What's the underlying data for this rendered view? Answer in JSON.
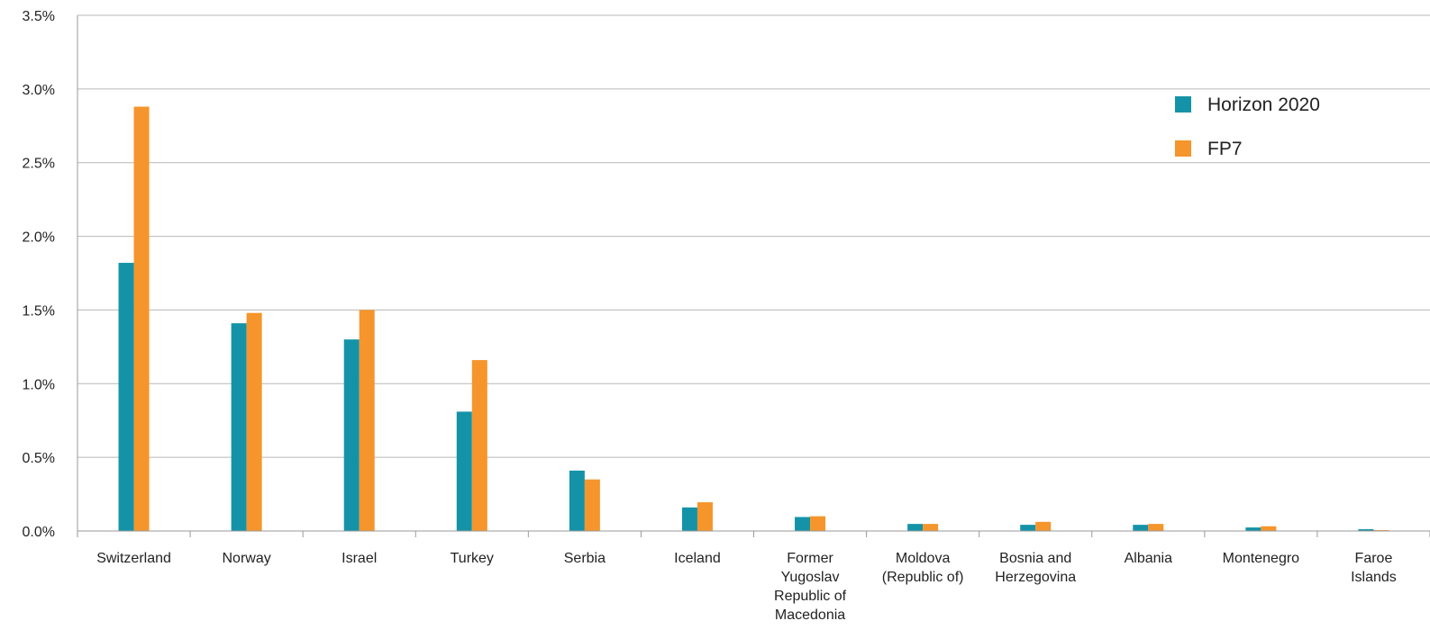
{
  "chart_data": {
    "type": "bar",
    "categories": [
      [
        "Switzerland"
      ],
      [
        "Norway"
      ],
      [
        "Israel"
      ],
      [
        "Turkey"
      ],
      [
        "Serbia"
      ],
      [
        "Iceland"
      ],
      [
        "Former",
        "Yugoslav",
        "Republic of",
        "Macedonia"
      ],
      [
        "Moldova",
        "(Republic of)"
      ],
      [
        "Bosnia and",
        "Herzegovina"
      ],
      [
        "Albania"
      ],
      [
        "Montenegro"
      ],
      [
        "Faroe",
        "Islands"
      ]
    ],
    "series": [
      {
        "name": "Horizon 2020",
        "color": "#1493a8",
        "values": [
          1.82,
          1.41,
          1.3,
          0.81,
          0.41,
          0.16,
          0.095,
          0.048,
          0.042,
          0.042,
          0.024,
          0.012
        ]
      },
      {
        "name": "FP7",
        "color": "#f5952b",
        "values": [
          2.88,
          1.48,
          1.5,
          1.16,
          0.35,
          0.195,
          0.1,
          0.048,
          0.062,
          0.048,
          0.032,
          0.006
        ]
      }
    ],
    "yticks": [
      "0.0%",
      "0.5%",
      "1.0%",
      "1.5%",
      "2.0%",
      "2.5%",
      "3.0%",
      "3.5%"
    ],
    "ylim": [
      0,
      3.5
    ],
    "title": "",
    "xlabel": "",
    "ylabel": "",
    "grid": true,
    "legend_position": "top-right"
  }
}
